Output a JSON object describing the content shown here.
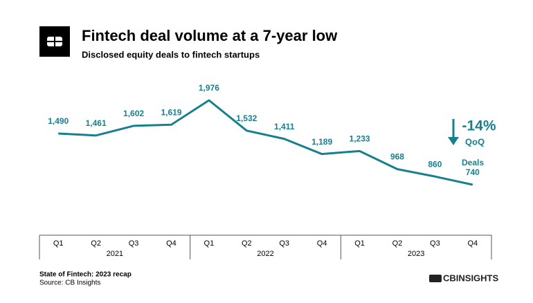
{
  "chart_data": {
    "type": "line",
    "title": "Fintech deal volume at a 7-year low",
    "subtitle": "Disclosed equity deals to fintech startups",
    "categories": [
      "Q1",
      "Q2",
      "Q3",
      "Q4",
      "Q1",
      "Q2",
      "Q3",
      "Q4",
      "Q1",
      "Q2",
      "Q3",
      "Q4"
    ],
    "groups": [
      "2021",
      "2022",
      "2023"
    ],
    "values": [
      1490,
      1461,
      1602,
      1619,
      1976,
      1532,
      1411,
      1189,
      1233,
      968,
      860,
      740
    ],
    "value_labels": [
      "1,490",
      "1,461",
      "1,602",
      "1,619",
      "1,976",
      "1,532",
      "1,411",
      "1,189",
      "1,233",
      "968",
      "860",
      "740"
    ],
    "color": "#16808f",
    "series_label": "Deals",
    "change_label": "-14%",
    "change_period": "QoQ",
    "footer_title": "State of Fintech: 2023 recap",
    "source": "Source: CB Insights",
    "brand": "CBINSIGHTS"
  }
}
